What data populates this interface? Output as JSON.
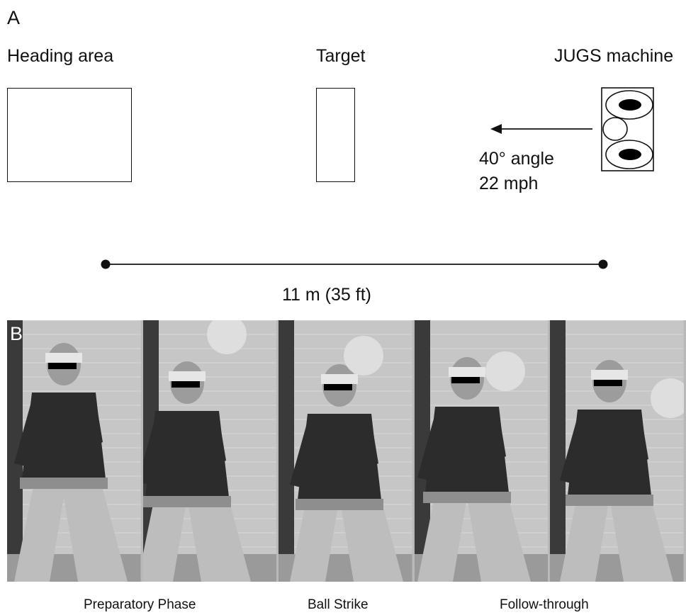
{
  "panel_a": {
    "letter": "A",
    "heading_area_label": "Heading area",
    "target_label": "Target",
    "machine_label": "JUGS machine",
    "launch_angle": "40° angle",
    "launch_speed": "22 mph",
    "distance": "11 m  (35 ft)"
  },
  "panel_b": {
    "letter": "B",
    "frames": [
      {
        "phase": "preparatory"
      },
      {
        "phase": "preparatory"
      },
      {
        "phase": "ball-strike"
      },
      {
        "phase": "follow-through"
      },
      {
        "phase": "follow-through"
      }
    ],
    "captions": {
      "preparatory": "Preparatory Phase",
      "strike": "Ball Strike",
      "follow": "Follow-through"
    }
  }
}
